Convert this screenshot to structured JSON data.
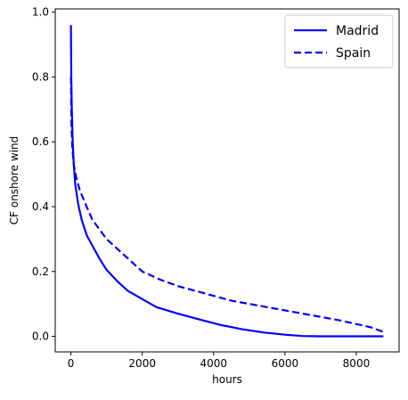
{
  "chart_data": {
    "type": "line",
    "xlabel": "hours",
    "ylabel": "CF onshore wind",
    "xlim": [
      -440,
      9200
    ],
    "ylim": [
      -0.048,
      1.01
    ],
    "xticks": [
      0,
      2000,
      4000,
      6000,
      8000
    ],
    "xtick_labels": [
      "0",
      "2000",
      "4000",
      "6000",
      "8000"
    ],
    "yticks": [
      0.0,
      0.2,
      0.4,
      0.6,
      0.8,
      1.0
    ],
    "ytick_labels": [
      "0.0",
      "0.2",
      "0.4",
      "0.6",
      "0.8",
      "1.0"
    ],
    "grid": false,
    "legend_position": "top-right",
    "series": [
      {
        "name": "Madrid",
        "style": "solid",
        "color": "#0000ff",
        "points": [
          [
            0,
            0.96
          ],
          [
            10,
            0.8
          ],
          [
            25,
            0.7
          ],
          [
            50,
            0.6
          ],
          [
            80,
            0.53
          ],
          [
            120,
            0.47
          ],
          [
            200,
            0.41
          ],
          [
            300,
            0.36
          ],
          [
            450,
            0.31
          ],
          [
            600,
            0.28
          ],
          [
            800,
            0.24
          ],
          [
            1000,
            0.205
          ],
          [
            1300,
            0.17
          ],
          [
            1600,
            0.14
          ],
          [
            2000,
            0.115
          ],
          [
            2400,
            0.09
          ],
          [
            3000,
            0.07
          ],
          [
            3600,
            0.052
          ],
          [
            4200,
            0.035
          ],
          [
            4800,
            0.022
          ],
          [
            5400,
            0.012
          ],
          [
            6000,
            0.005
          ],
          [
            6500,
            0.001
          ],
          [
            7000,
            0.0
          ],
          [
            8760,
            0.0
          ]
        ]
      },
      {
        "name": "Spain",
        "style": "dashed",
        "color": "#0000ff",
        "points": [
          [
            0,
            0.8
          ],
          [
            15,
            0.65
          ],
          [
            40,
            0.58
          ],
          [
            80,
            0.53
          ],
          [
            150,
            0.49
          ],
          [
            250,
            0.45
          ],
          [
            400,
            0.41
          ],
          [
            600,
            0.36
          ],
          [
            800,
            0.33
          ],
          [
            1000,
            0.3
          ],
          [
            1300,
            0.27
          ],
          [
            1600,
            0.24
          ],
          [
            2000,
            0.2
          ],
          [
            2500,
            0.175
          ],
          [
            3000,
            0.155
          ],
          [
            3500,
            0.14
          ],
          [
            4000,
            0.125
          ],
          [
            4500,
            0.11
          ],
          [
            5000,
            0.1
          ],
          [
            5500,
            0.09
          ],
          [
            6000,
            0.08
          ],
          [
            6500,
            0.07
          ],
          [
            7000,
            0.06
          ],
          [
            7500,
            0.05
          ],
          [
            8000,
            0.038
          ],
          [
            8400,
            0.028
          ],
          [
            8700,
            0.016
          ],
          [
            8760,
            0.012
          ]
        ]
      }
    ]
  }
}
